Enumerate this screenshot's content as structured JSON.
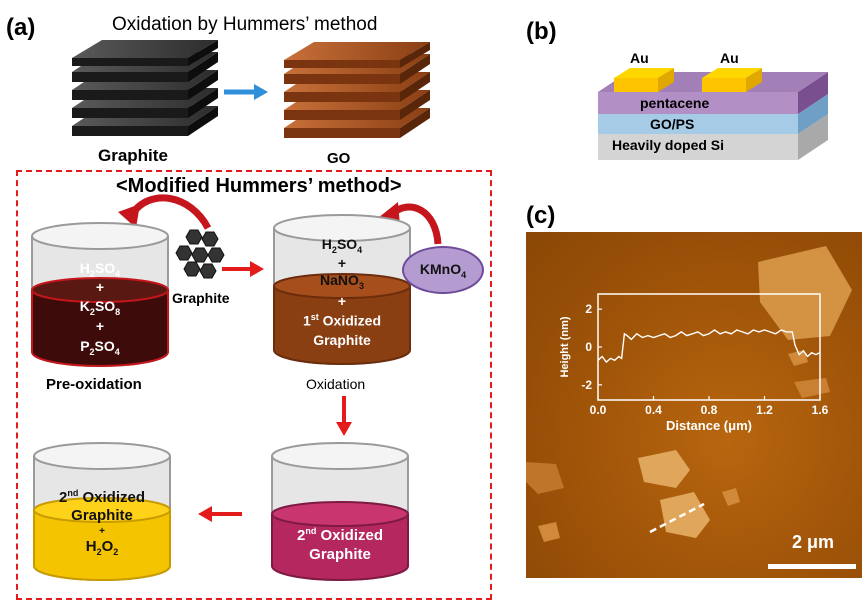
{
  "figure": {
    "panel_a_label": "(a)",
    "panel_b_label": "(b)",
    "panel_c_label": "(c)",
    "top_title": "Oxidation by Hummers’ method",
    "graphite_label": "Graphite",
    "go_label": "GO",
    "modified_title": "<Modified Hummers’ method>",
    "beaker1": {
      "line1_main": "H",
      "line1_sub": "2",
      "line1_tail": "SO",
      "line1_sub2": "4",
      "plus1": "+",
      "line2_main": "K",
      "line2_sub": "2",
      "line2_tail": "SO",
      "line2_sub2": "8",
      "plus2": "+",
      "line3_main": "P",
      "line3_sub": "2",
      "line3_tail": "SO",
      "line3_sub2": "4"
    },
    "graphite_flakes_label": "Graphite",
    "preox_label": "Pre-oxidation",
    "beaker2": {
      "line1_main": "H",
      "line1_sub": "2",
      "line1_tail": "SO",
      "line1_sub2": "4",
      "plus1": "+",
      "line2_main": "NaNO",
      "line2_sub": "3",
      "plus2": "+",
      "line3_sup": "st",
      "line3_pre": "1",
      "line3_tail": " Oxidized",
      "line4": "Graphite"
    },
    "kmno4_main": "KMnO",
    "kmno4_sub": "4",
    "oxidation_label": "Oxidation",
    "beaker3": {
      "sup": "nd",
      "pre": "2",
      "tail": " Oxidized",
      "line2": "Graphite"
    },
    "beaker4": {
      "sup": "nd",
      "pre": "2",
      "tail": " Oxidized",
      "line2": "Graphite",
      "plus": "+",
      "h2o2_main": "H",
      "h2o2_sub": "2",
      "h2o2_mid": "O",
      "h2o2_sub2": "2"
    },
    "device": {
      "au1": "Au",
      "au2": "Au",
      "pentacene": "pentacene",
      "gops": "GO/PS",
      "substrate": "Heavily doped Si"
    },
    "afm": {
      "scale_bar": "2 μm"
    }
  },
  "chart_data": {
    "type": "line",
    "xlabel": "Distance (μm)",
    "ylabel": "Height (nm)",
    "xlim": [
      0,
      1.6
    ],
    "ylim": [
      -2.8,
      2.8
    ],
    "xticks": [
      "0.0",
      "0.4",
      "0.8",
      "1.2",
      "1.6"
    ],
    "yticks": [
      "2",
      "0",
      "-2"
    ],
    "x": [
      0.0,
      0.03,
      0.06,
      0.09,
      0.12,
      0.15,
      0.17,
      0.19,
      0.21,
      0.24,
      0.28,
      0.32,
      0.36,
      0.4,
      0.44,
      0.48,
      0.52,
      0.56,
      0.6,
      0.64,
      0.68,
      0.72,
      0.76,
      0.8,
      0.84,
      0.88,
      0.92,
      0.96,
      1.0,
      1.04,
      1.08,
      1.12,
      1.16,
      1.2,
      1.24,
      1.28,
      1.32,
      1.36,
      1.4,
      1.42,
      1.45,
      1.48,
      1.51,
      1.54,
      1.57,
      1.6
    ],
    "y": [
      -0.7,
      -0.5,
      -0.8,
      -0.6,
      -0.7,
      -0.5,
      -0.6,
      0.7,
      0.6,
      0.4,
      0.7,
      0.5,
      0.6,
      0.5,
      0.6,
      0.7,
      0.5,
      0.6,
      0.8,
      0.6,
      0.7,
      0.8,
      0.6,
      0.7,
      0.9,
      0.7,
      0.8,
      0.7,
      0.9,
      0.8,
      0.7,
      0.9,
      0.8,
      0.9,
      0.8,
      0.7,
      0.9,
      0.8,
      0.8,
      0.1,
      -0.4,
      -0.2,
      -0.5,
      -0.3,
      -0.4,
      -0.3
    ]
  }
}
